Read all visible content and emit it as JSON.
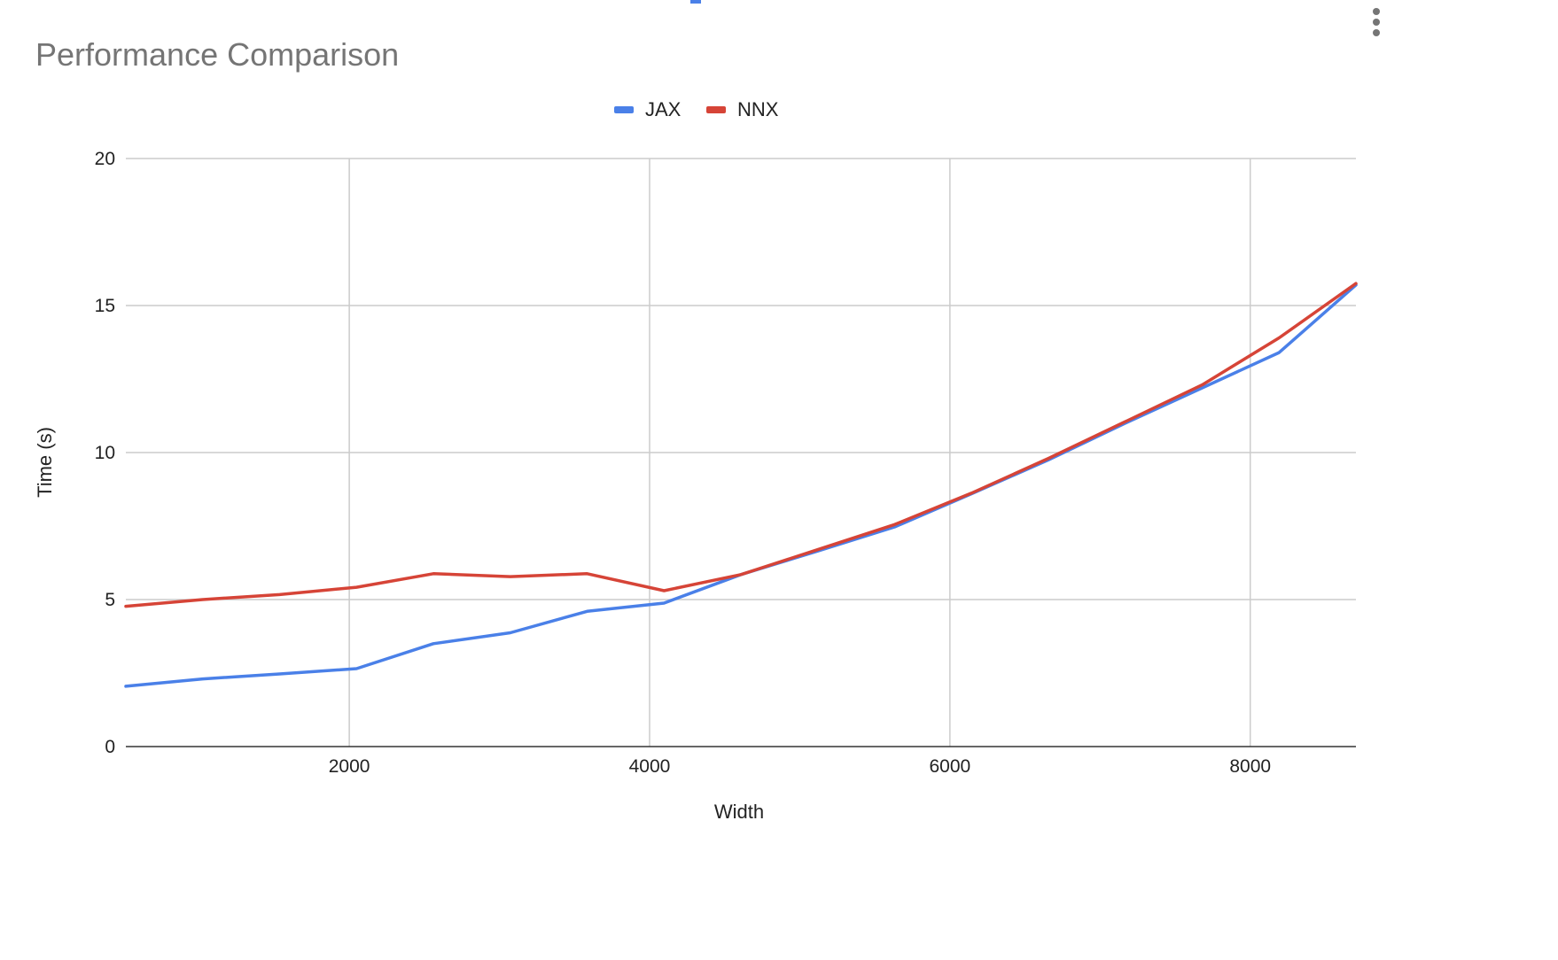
{
  "chart_data": {
    "type": "line",
    "title": "Performance Comparison",
    "xlabel": "Width",
    "ylabel": "Time (s)",
    "xlim": [
      512,
      8704
    ],
    "ylim": [
      0,
      20
    ],
    "x_ticks": [
      2000,
      4000,
      6000,
      8000
    ],
    "y_ticks": [
      0,
      5,
      10,
      15,
      20
    ],
    "grid": true,
    "legend_position": "top-center",
    "x": [
      512,
      1024,
      1536,
      2048,
      2560,
      3072,
      3584,
      4096,
      4608,
      5120,
      5632,
      6144,
      6656,
      7168,
      7680,
      8192,
      8704
    ],
    "series": [
      {
        "name": "JAX",
        "color": "#4a80e8",
        "values": [
          2.05,
          2.3,
          2.47,
          2.65,
          3.5,
          3.87,
          4.6,
          4.88,
          5.85,
          6.65,
          7.47,
          8.6,
          9.75,
          11.0,
          12.2,
          13.4,
          15.7
        ]
      },
      {
        "name": "NNX",
        "color": "#d64437",
        "values": [
          4.77,
          5.0,
          5.17,
          5.42,
          5.88,
          5.78,
          5.88,
          5.3,
          5.85,
          6.7,
          7.55,
          8.62,
          9.8,
          11.05,
          12.3,
          13.9,
          15.75
        ]
      }
    ]
  },
  "ui": {
    "menu_icon": "more-vert-icon",
    "menu_color": "#757575",
    "top_marker_color": "#4a80e8"
  }
}
